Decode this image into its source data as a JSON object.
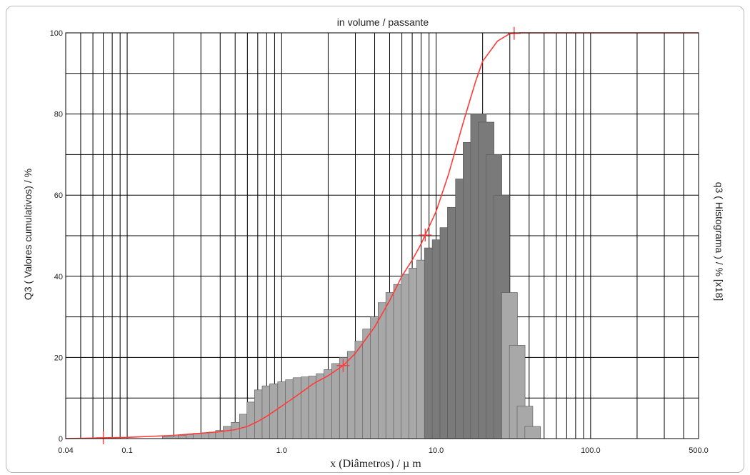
{
  "chart_data": {
    "type": "bar",
    "title": "in volume / passante",
    "xlabel": "x (Diâmetros) / µ m",
    "ylabel_left": "Q3 ( Valores cumulativos) / %",
    "ylabel_right": "q3 ( Histograma ) / % [x18]",
    "x_scale": "log",
    "xlim": [
      0.04,
      500
    ],
    "ylim": [
      0,
      100
    ],
    "x_tick_labels": [
      "0.04",
      "0.1",
      "1.0",
      "10.0",
      "100.0",
      "500.0"
    ],
    "y_tick_labels": [
      "0",
      "20",
      "40",
      "60",
      "80",
      "100"
    ],
    "grid": true,
    "colors": {
      "bars": "#a8a8a8",
      "bars_dark": "#7a7a7a",
      "curve": "#ff3b3b",
      "grid": "#000000"
    },
    "series": [
      {
        "name": "Q3",
        "type": "line",
        "x": [
          0.04,
          0.1,
          0.2,
          0.3,
          0.4,
          0.5,
          0.6,
          0.7,
          0.8,
          1.0,
          1.3,
          1.6,
          2.0,
          2.5,
          3.0,
          4.0,
          5.0,
          6.0,
          7.0,
          8.0,
          10.0,
          12.0,
          15.0,
          18.0,
          20.0,
          25.0,
          30.0,
          35.0,
          500.0
        ],
        "y": [
          0,
          0.3,
          0.8,
          1.3,
          1.7,
          2.2,
          3.0,
          4.2,
          5.5,
          8.0,
          11.0,
          13.5,
          15.5,
          18.0,
          21.0,
          27.5,
          34.0,
          40.0,
          44.0,
          48.0,
          56.0,
          65.0,
          78.0,
          88.0,
          93.0,
          98.0,
          99.8,
          100,
          100
        ]
      },
      {
        "name": "q3",
        "type": "bar",
        "x": [
          0.19,
          0.24,
          0.27,
          0.3,
          0.34,
          0.38,
          0.42,
          0.47,
          0.53,
          0.6,
          0.67,
          0.75,
          0.84,
          0.94,
          1.06,
          1.19,
          1.33,
          1.5,
          1.68,
          1.88,
          2.11,
          2.37,
          2.66,
          2.99,
          3.35,
          3.76,
          4.22,
          4.73,
          5.31,
          5.96,
          6.68,
          7.5,
          8.42,
          9.44,
          10.6,
          11.9,
          13.3,
          15.0,
          16.8,
          18.8,
          21.1,
          23.7,
          26.6,
          29.9,
          33.5,
          37.6,
          42.2
        ],
        "y": [
          0.5,
          0.8,
          1.0,
          1.3,
          1.4,
          1.6,
          2.0,
          3.0,
          4.0,
          6.0,
          9.0,
          12.0,
          13.0,
          13.5,
          14.0,
          14.5,
          15.0,
          15.2,
          15.4,
          16.0,
          17.0,
          18.5,
          20.0,
          21.5,
          24.0,
          27.0,
          30.0,
          33.5,
          36.0,
          38.0,
          40.5,
          42.0,
          44.0,
          47.0,
          49.0,
          52.0,
          57.0,
          64.0,
          73.0,
          80.0,
          78.0,
          70.0,
          60.0,
          36.0,
          23.0,
          8.0,
          3.0
        ]
      }
    ],
    "markers_x": [
      0.07,
      2.5,
      8.5,
      32
    ]
  }
}
